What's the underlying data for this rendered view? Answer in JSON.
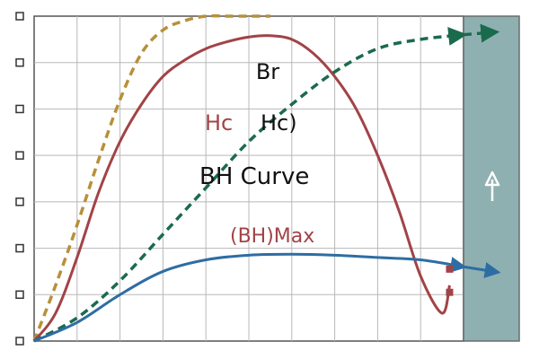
{
  "chart_data": {
    "type": "line",
    "title": "",
    "xlabel": "",
    "ylabel": "",
    "grid": true,
    "xlim": [
      0,
      20
    ],
    "ylim": [
      0,
      7
    ],
    "annotations": {
      "br": "Br",
      "hc_red": "Hc",
      "hc_paren": "Hc)",
      "bh_curve": "BH Curve",
      "bh_max": "(BH)Max"
    },
    "series": [
      {
        "id": "gold-dashed",
        "style": "dashed",
        "color": "#b8903a",
        "points": [
          [
            0,
            0
          ],
          [
            1,
            1.2
          ],
          [
            2,
            2.5
          ],
          [
            3,
            3.9
          ],
          [
            4,
            5.2
          ],
          [
            5,
            6.2
          ],
          [
            6,
            6.7
          ],
          [
            7,
            6.9
          ],
          [
            8,
            7.0
          ],
          [
            9,
            7.0
          ],
          [
            10,
            7.0
          ],
          [
            11,
            7.0
          ]
        ]
      },
      {
        "id": "red-solid",
        "style": "solid",
        "color": "#a24347",
        "points": [
          [
            0,
            0
          ],
          [
            1,
            0.6
          ],
          [
            2,
            1.8
          ],
          [
            3,
            3.2
          ],
          [
            4,
            4.3
          ],
          [
            5,
            5.1
          ],
          [
            6,
            5.7
          ],
          [
            7,
            6.05
          ],
          [
            8,
            6.3
          ],
          [
            9,
            6.45
          ],
          [
            10,
            6.55
          ],
          [
            11,
            6.58
          ],
          [
            12,
            6.5
          ],
          [
            13,
            6.2
          ],
          [
            14,
            5.7
          ],
          [
            15,
            5.0
          ],
          [
            16,
            4.0
          ],
          [
            17,
            2.8
          ],
          [
            18,
            1.4
          ],
          [
            19,
            0.6
          ],
          [
            19.35,
            1.2
          ]
        ]
      },
      {
        "id": "green-dashed",
        "style": "dashed",
        "color": "#1a6b4d",
        "points": [
          [
            0,
            0
          ],
          [
            2,
            0.5
          ],
          [
            4,
            1.3
          ],
          [
            6,
            2.3
          ],
          [
            8,
            3.3
          ],
          [
            10,
            4.3
          ],
          [
            12,
            5.1
          ],
          [
            14,
            5.8
          ],
          [
            16,
            6.3
          ],
          [
            18,
            6.5
          ],
          [
            20,
            6.6
          ]
        ]
      },
      {
        "id": "blue-solid",
        "style": "solid",
        "color": "#2e6da4",
        "points": [
          [
            0,
            0
          ],
          [
            2,
            0.4
          ],
          [
            4,
            1.0
          ],
          [
            6,
            1.5
          ],
          [
            8,
            1.75
          ],
          [
            10,
            1.85
          ],
          [
            12,
            1.87
          ],
          [
            14,
            1.85
          ],
          [
            16,
            1.8
          ],
          [
            18,
            1.75
          ],
          [
            20,
            1.6
          ]
        ]
      }
    ],
    "markers": [
      {
        "x": 19.35,
        "y": 1.55,
        "color": "#a24347"
      },
      {
        "x": 19.35,
        "y": 1.05,
        "color": "#a24347"
      }
    ],
    "side_panel": {
      "color": "#8fb0b0",
      "icon": "arrow-up-icon"
    }
  }
}
